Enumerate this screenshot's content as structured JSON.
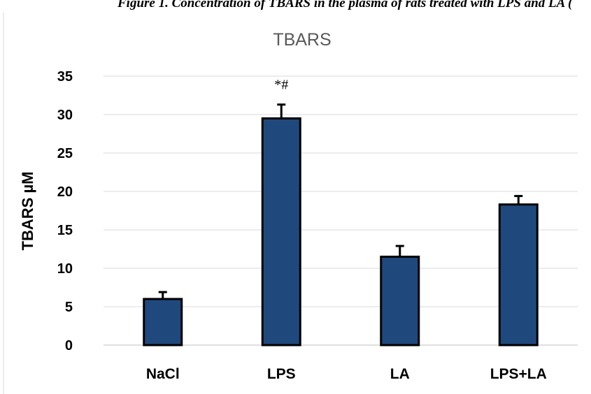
{
  "page_header": "Figure 1. Concentration of TBARS in the plasma of rats treated with LPS and LA (",
  "chart_data": {
    "type": "bar",
    "title": "TBARS",
    "xlabel": "",
    "ylabel": "TBARS µM",
    "categories": [
      "NaCl",
      "LPS",
      "LA",
      "LPS+LA"
    ],
    "series": [
      {
        "values": [
          6,
          29.5,
          11.5,
          18.3
        ],
        "errors": [
          0.9,
          1.8,
          1.4,
          1.1
        ],
        "color": "#1f497d"
      }
    ],
    "annotations": [
      {
        "category": "LPS",
        "text": "*#"
      }
    ],
    "ylim": [
      0,
      35
    ],
    "yticks": [
      0,
      5,
      10,
      15,
      20,
      25,
      30,
      35
    ],
    "grid": true,
    "legend": "none"
  }
}
